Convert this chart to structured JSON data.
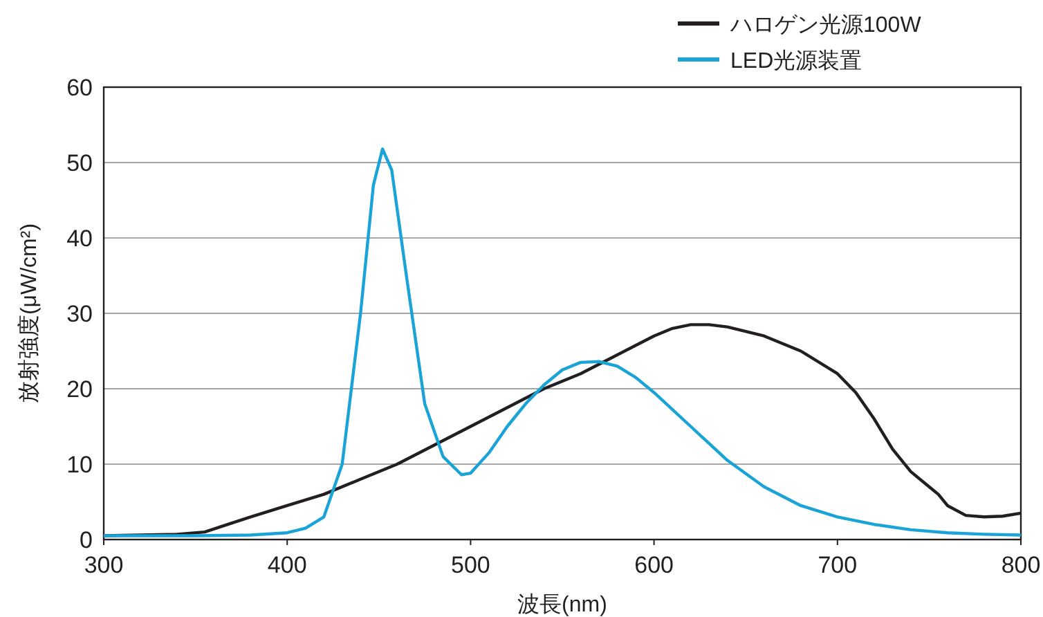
{
  "chart_data": {
    "type": "line",
    "xlabel": "波長(nm)",
    "ylabel": "放射強度(μW/cm²)",
    "xlim": [
      300,
      800
    ],
    "xticks": [
      300,
      400,
      500,
      600,
      700,
      800
    ],
    "ylim": [
      0,
      60
    ],
    "yticks": [
      0,
      10,
      20,
      30,
      40,
      50,
      60
    ],
    "grid": "y",
    "legend": "top right",
    "marker": "none",
    "line_style": "solid",
    "series": [
      {
        "name": "ハロゲン光源100W",
        "color": "#231f20",
        "x": [
          300,
          340,
          355,
          365,
          380,
          400,
          420,
          440,
          460,
          480,
          500,
          520,
          540,
          560,
          580,
          600,
          610,
          620,
          630,
          640,
          660,
          680,
          700,
          710,
          720,
          730,
          740,
          750,
          755,
          760,
          770,
          780,
          790,
          800
        ],
        "values": [
          0.5,
          0.7,
          1,
          1.8,
          3,
          4.5,
          6,
          8,
          10,
          12.5,
          15,
          17.5,
          20,
          22,
          24.5,
          27,
          28,
          28.5,
          28.5,
          28.2,
          27,
          25,
          22,
          19.5,
          16,
          12,
          9,
          7,
          6,
          4.5,
          3.2,
          3,
          3.1,
          3.5
        ]
      },
      {
        "name": "LED光源装置",
        "color": "#1aa3d6",
        "x": [
          300,
          350,
          380,
          400,
          410,
          420,
          430,
          440,
          447,
          452,
          457,
          465,
          475,
          485,
          495,
          500,
          510,
          520,
          530,
          540,
          550,
          560,
          570,
          580,
          590,
          600,
          620,
          640,
          660,
          680,
          700,
          720,
          740,
          760,
          780,
          800
        ],
        "values": [
          0.5,
          0.5,
          0.6,
          0.9,
          1.5,
          3,
          10,
          30,
          47,
          51.8,
          49,
          35,
          18,
          11,
          8.6,
          8.8,
          11.5,
          15,
          18,
          20.5,
          22.5,
          23.5,
          23.6,
          23,
          21.5,
          19.5,
          15,
          10.5,
          7,
          4.5,
          3,
          2,
          1.3,
          0.9,
          0.7,
          0.6
        ]
      }
    ]
  }
}
